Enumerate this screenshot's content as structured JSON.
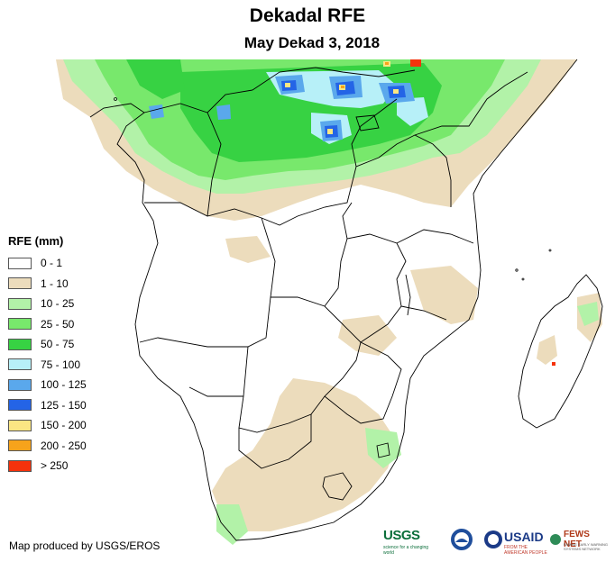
{
  "header": {
    "title": "Dekadal RFE",
    "subtitle": "May Dekad 3, 2018"
  },
  "legend": {
    "title": "RFE (mm)",
    "items": [
      {
        "label": "0 - 1",
        "color": "#ffffff"
      },
      {
        "label": "1 - 10",
        "color": "#ecdcbc"
      },
      {
        "label": "10 - 25",
        "color": "#b2f2a8"
      },
      {
        "label": "25 - 50",
        "color": "#78e86c"
      },
      {
        "label": "50 - 75",
        "color": "#37d243"
      },
      {
        "label": "75 - 100",
        "color": "#b7f0f8"
      },
      {
        "label": "100 - 125",
        "color": "#5aa8ec"
      },
      {
        "label": "125 - 150",
        "color": "#2464e6"
      },
      {
        "label": "150 - 200",
        "color": "#fbe683"
      },
      {
        "label": "200 - 250",
        "color": "#f7a31b"
      },
      {
        "label": "> 250",
        "color": "#f5320c"
      }
    ]
  },
  "footer": {
    "credit": "Map produced by USGS/EROS",
    "logos": {
      "usgs": "USGS",
      "usgs_tagline": "science for a changing world",
      "usaid": "USAID",
      "usaid_tagline": "FROM THE AMERICAN PEOPLE",
      "fews": "FEWS NET",
      "fews_tagline": "FAMINE EARLY WARNING SYSTEMS NETWORK"
    }
  },
  "map": {
    "region": "Southern Africa",
    "colors": {
      "border": "#000000",
      "ocean": "#ffffff"
    }
  }
}
